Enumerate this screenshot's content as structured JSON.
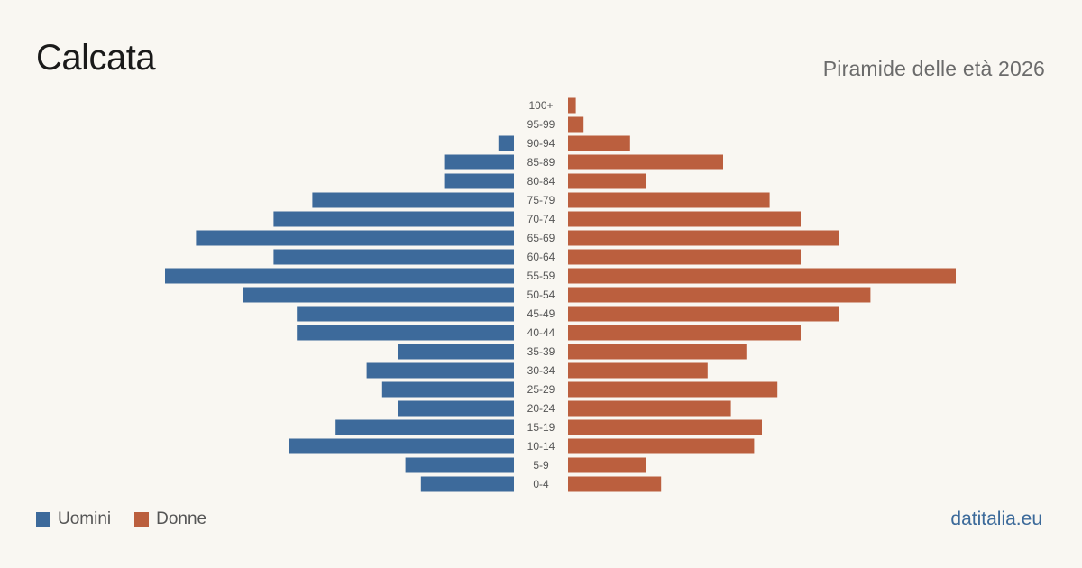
{
  "header": {
    "title": "Calcata",
    "subtitle": "Piramide delle età 2026"
  },
  "legend": {
    "men_label": "Uomini",
    "women_label": "Donne"
  },
  "footer": {
    "site": "datitalia.eu"
  },
  "colors": {
    "men": "#3d6a9b",
    "women": "#bb5f3e",
    "background": "#f9f7f2",
    "age_label": "#555555"
  },
  "chart_data": {
    "type": "bar",
    "orientation": "horizontal-pyramid",
    "categories": [
      "0-4",
      "5-9",
      "10-14",
      "15-19",
      "20-24",
      "25-29",
      "30-34",
      "35-39",
      "40-44",
      "45-49",
      "50-54",
      "55-59",
      "60-64",
      "65-69",
      "70-74",
      "75-79",
      "80-84",
      "85-89",
      "90-94",
      "95-99",
      "100+"
    ],
    "series": [
      {
        "name": "Uomini",
        "values": [
          12,
          14,
          29,
          23,
          15,
          17,
          19,
          15,
          28,
          28,
          35,
          45,
          31,
          41,
          31,
          26,
          9,
          9,
          2,
          0,
          0
        ]
      },
      {
        "name": "Donne",
        "values": [
          12,
          10,
          24,
          25,
          21,
          27,
          18,
          23,
          30,
          35,
          39,
          50,
          30,
          35,
          30,
          26,
          10,
          20,
          8,
          2,
          1
        ]
      }
    ],
    "legend_position": "bottom-left",
    "grid": false
  }
}
